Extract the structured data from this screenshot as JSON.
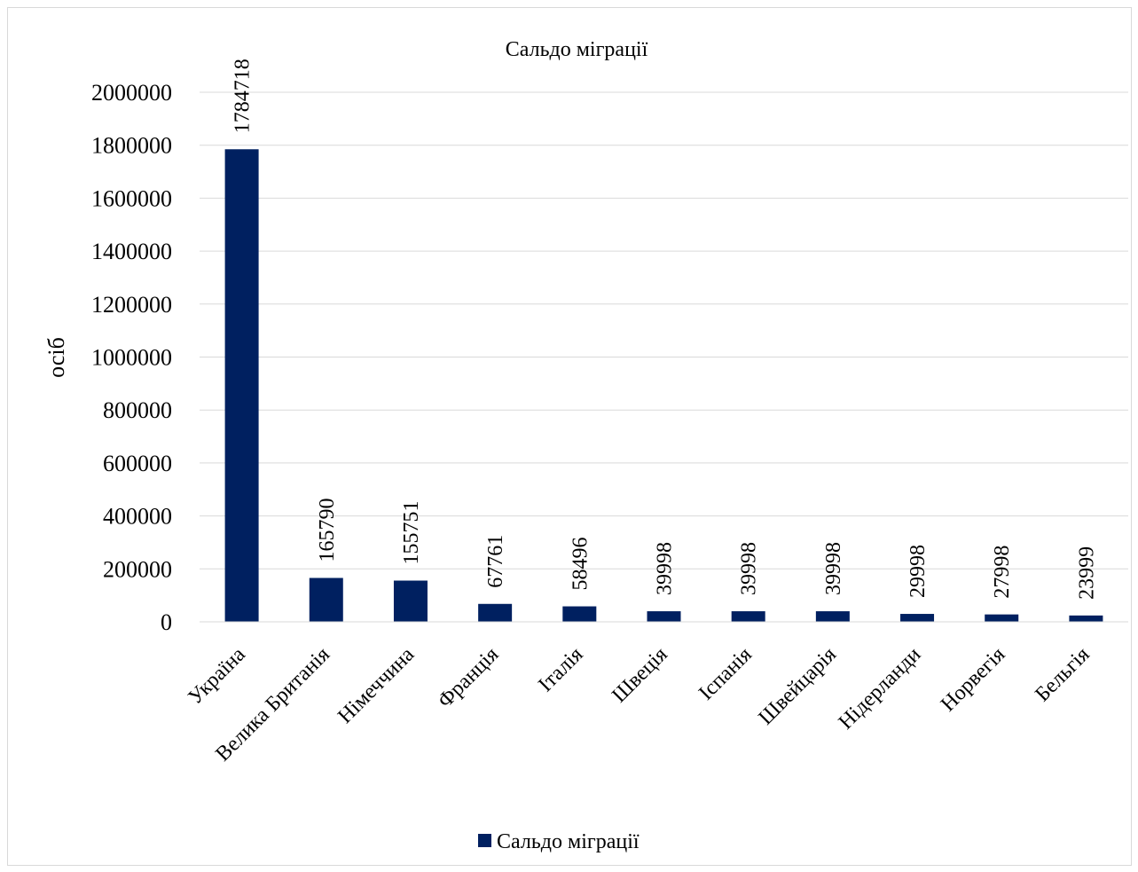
{
  "chart_data": {
    "type": "bar",
    "title": "Сальдо міграції",
    "ylabel": "осіб",
    "xlabel": "",
    "ylim": [
      0,
      2000000
    ],
    "yticks": [
      0,
      200000,
      400000,
      600000,
      800000,
      1000000,
      1200000,
      1400000,
      1600000,
      1800000,
      2000000
    ],
    "grid": true,
    "legend_position": "bottom",
    "categories": [
      "Україна",
      "Велика Британія",
      "Німеччина",
      "Франція",
      "Італія",
      "Швеція",
      "Іспанія",
      "Швейцарія",
      "Нідерланди",
      "Норвегія",
      "Бельгія"
    ],
    "series": [
      {
        "name": "Сальдо міграції",
        "color": "#002060",
        "values": [
          1784718,
          165790,
          155751,
          67761,
          58496,
          39998,
          39998,
          39998,
          29998,
          27998,
          23999
        ]
      }
    ]
  }
}
